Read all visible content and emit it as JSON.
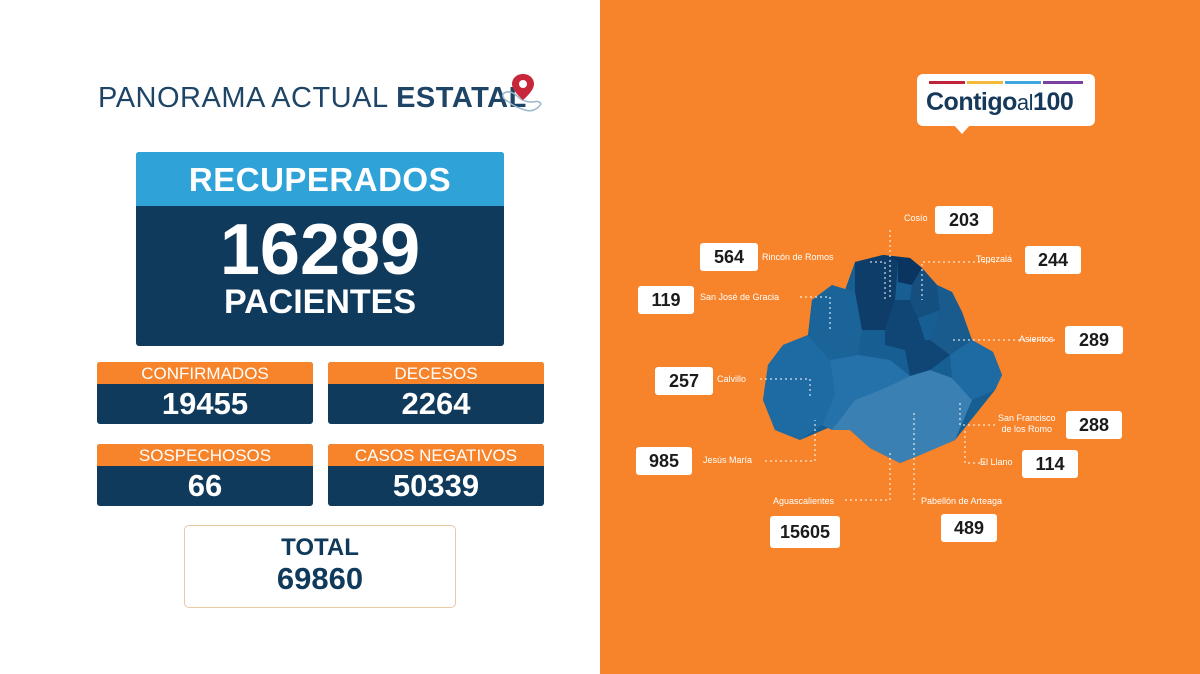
{
  "header": {
    "title_part1": "PANORAMA ACTUAL",
    "title_part2": "ESTATAL",
    "icon": "location-pin-mexico-icon"
  },
  "recuperados": {
    "label": "RECUPERADOS",
    "value": "16289",
    "unit": "PACIENTES"
  },
  "stats": {
    "confirmados": {
      "label": "CONFIRMADOS",
      "value": "19455"
    },
    "decesos": {
      "label": "DECESOS",
      "value": "2264"
    },
    "sospechosos": {
      "label": "SOSPECHOSOS",
      "value": "66"
    },
    "negativos": {
      "label": "CASOS NEGATIVOS",
      "value": "50339"
    }
  },
  "total": {
    "label": "TOTAL",
    "value": "69860"
  },
  "logo": {
    "word1": "Contigo",
    "word2": "al",
    "word3": "100"
  },
  "municipalities": {
    "cosio": {
      "name": "Cosío",
      "value": "203"
    },
    "rincon": {
      "name": "Rincón de Romos",
      "value": "564"
    },
    "tepezala": {
      "name": "Tepezalá",
      "value": "244"
    },
    "sanjose": {
      "name": "San José de Gracia",
      "value": "119"
    },
    "asientos": {
      "name": "Asientos",
      "value": "289"
    },
    "calvillo": {
      "name": "Calvillo",
      "value": "257"
    },
    "sanfrancisco": {
      "name_line1": "San Francisco",
      "name_line2": "de los Romo",
      "value": "288"
    },
    "jesusmaria": {
      "name": "Jesús María",
      "value": "985"
    },
    "elllano": {
      "name": "El Llano",
      "value": "114"
    },
    "aguascalientes": {
      "name": "Aguascalientes",
      "value": "15605"
    },
    "pabellon": {
      "name": "Pabellón de Arteaga",
      "value": "489"
    }
  },
  "colors": {
    "orange": "#f7842a",
    "navy": "#0f3a5c",
    "blue": "#2fa2d8"
  }
}
